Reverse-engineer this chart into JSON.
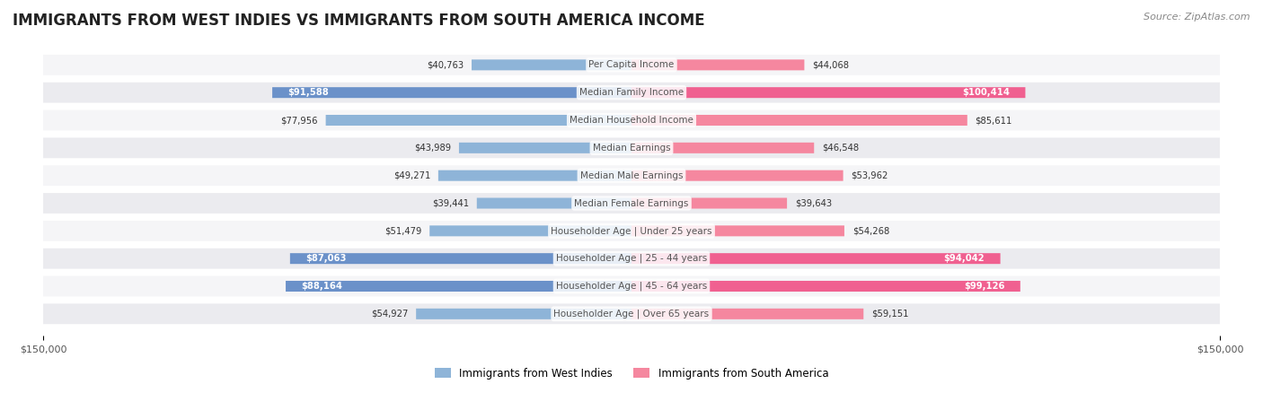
{
  "title": "IMMIGRANTS FROM WEST INDIES VS IMMIGRANTS FROM SOUTH AMERICA INCOME",
  "source": "Source: ZipAtlas.com",
  "categories": [
    "Per Capita Income",
    "Median Family Income",
    "Median Household Income",
    "Median Earnings",
    "Median Male Earnings",
    "Median Female Earnings",
    "Householder Age | Under 25 years",
    "Householder Age | 25 - 44 years",
    "Householder Age | 45 - 64 years",
    "Householder Age | Over 65 years"
  ],
  "west_indies_values": [
    40763,
    91588,
    77956,
    43989,
    49271,
    39441,
    51479,
    87063,
    88164,
    54927
  ],
  "south_america_values": [
    44068,
    100414,
    85611,
    46548,
    53962,
    39643,
    54268,
    94042,
    99126,
    59151
  ],
  "west_indies_labels": [
    "$40,763",
    "$91,588",
    "$77,956",
    "$43,989",
    "$49,271",
    "$39,441",
    "$51,479",
    "$87,063",
    "$88,164",
    "$54,927"
  ],
  "south_america_labels": [
    "$44,068",
    "$100,414",
    "$85,611",
    "$46,548",
    "$53,962",
    "$39,643",
    "$54,268",
    "$94,042",
    "$99,126",
    "$59,151"
  ],
  "west_indies_color": "#8eaed4",
  "south_america_color": "#f4829e",
  "west_indies_highlight": [
    "#7b9fc9",
    "#6b91c4"
  ],
  "south_america_highlight": [
    "#f06090",
    "#f06090"
  ],
  "highlight_rows": [
    1,
    7,
    8
  ],
  "max_value": 150000,
  "background_color": "#ffffff",
  "row_bg_color": "#f0f0f0",
  "legend_west_indies": "Immigrants from West Indies",
  "legend_south_america": "Immigrants from South America",
  "west_indies_bar_color": "#8eb4d8",
  "south_america_bar_color": "#f5879f",
  "west_indies_highlight_color": "#6b91c9",
  "south_america_highlight_color": "#f06090"
}
